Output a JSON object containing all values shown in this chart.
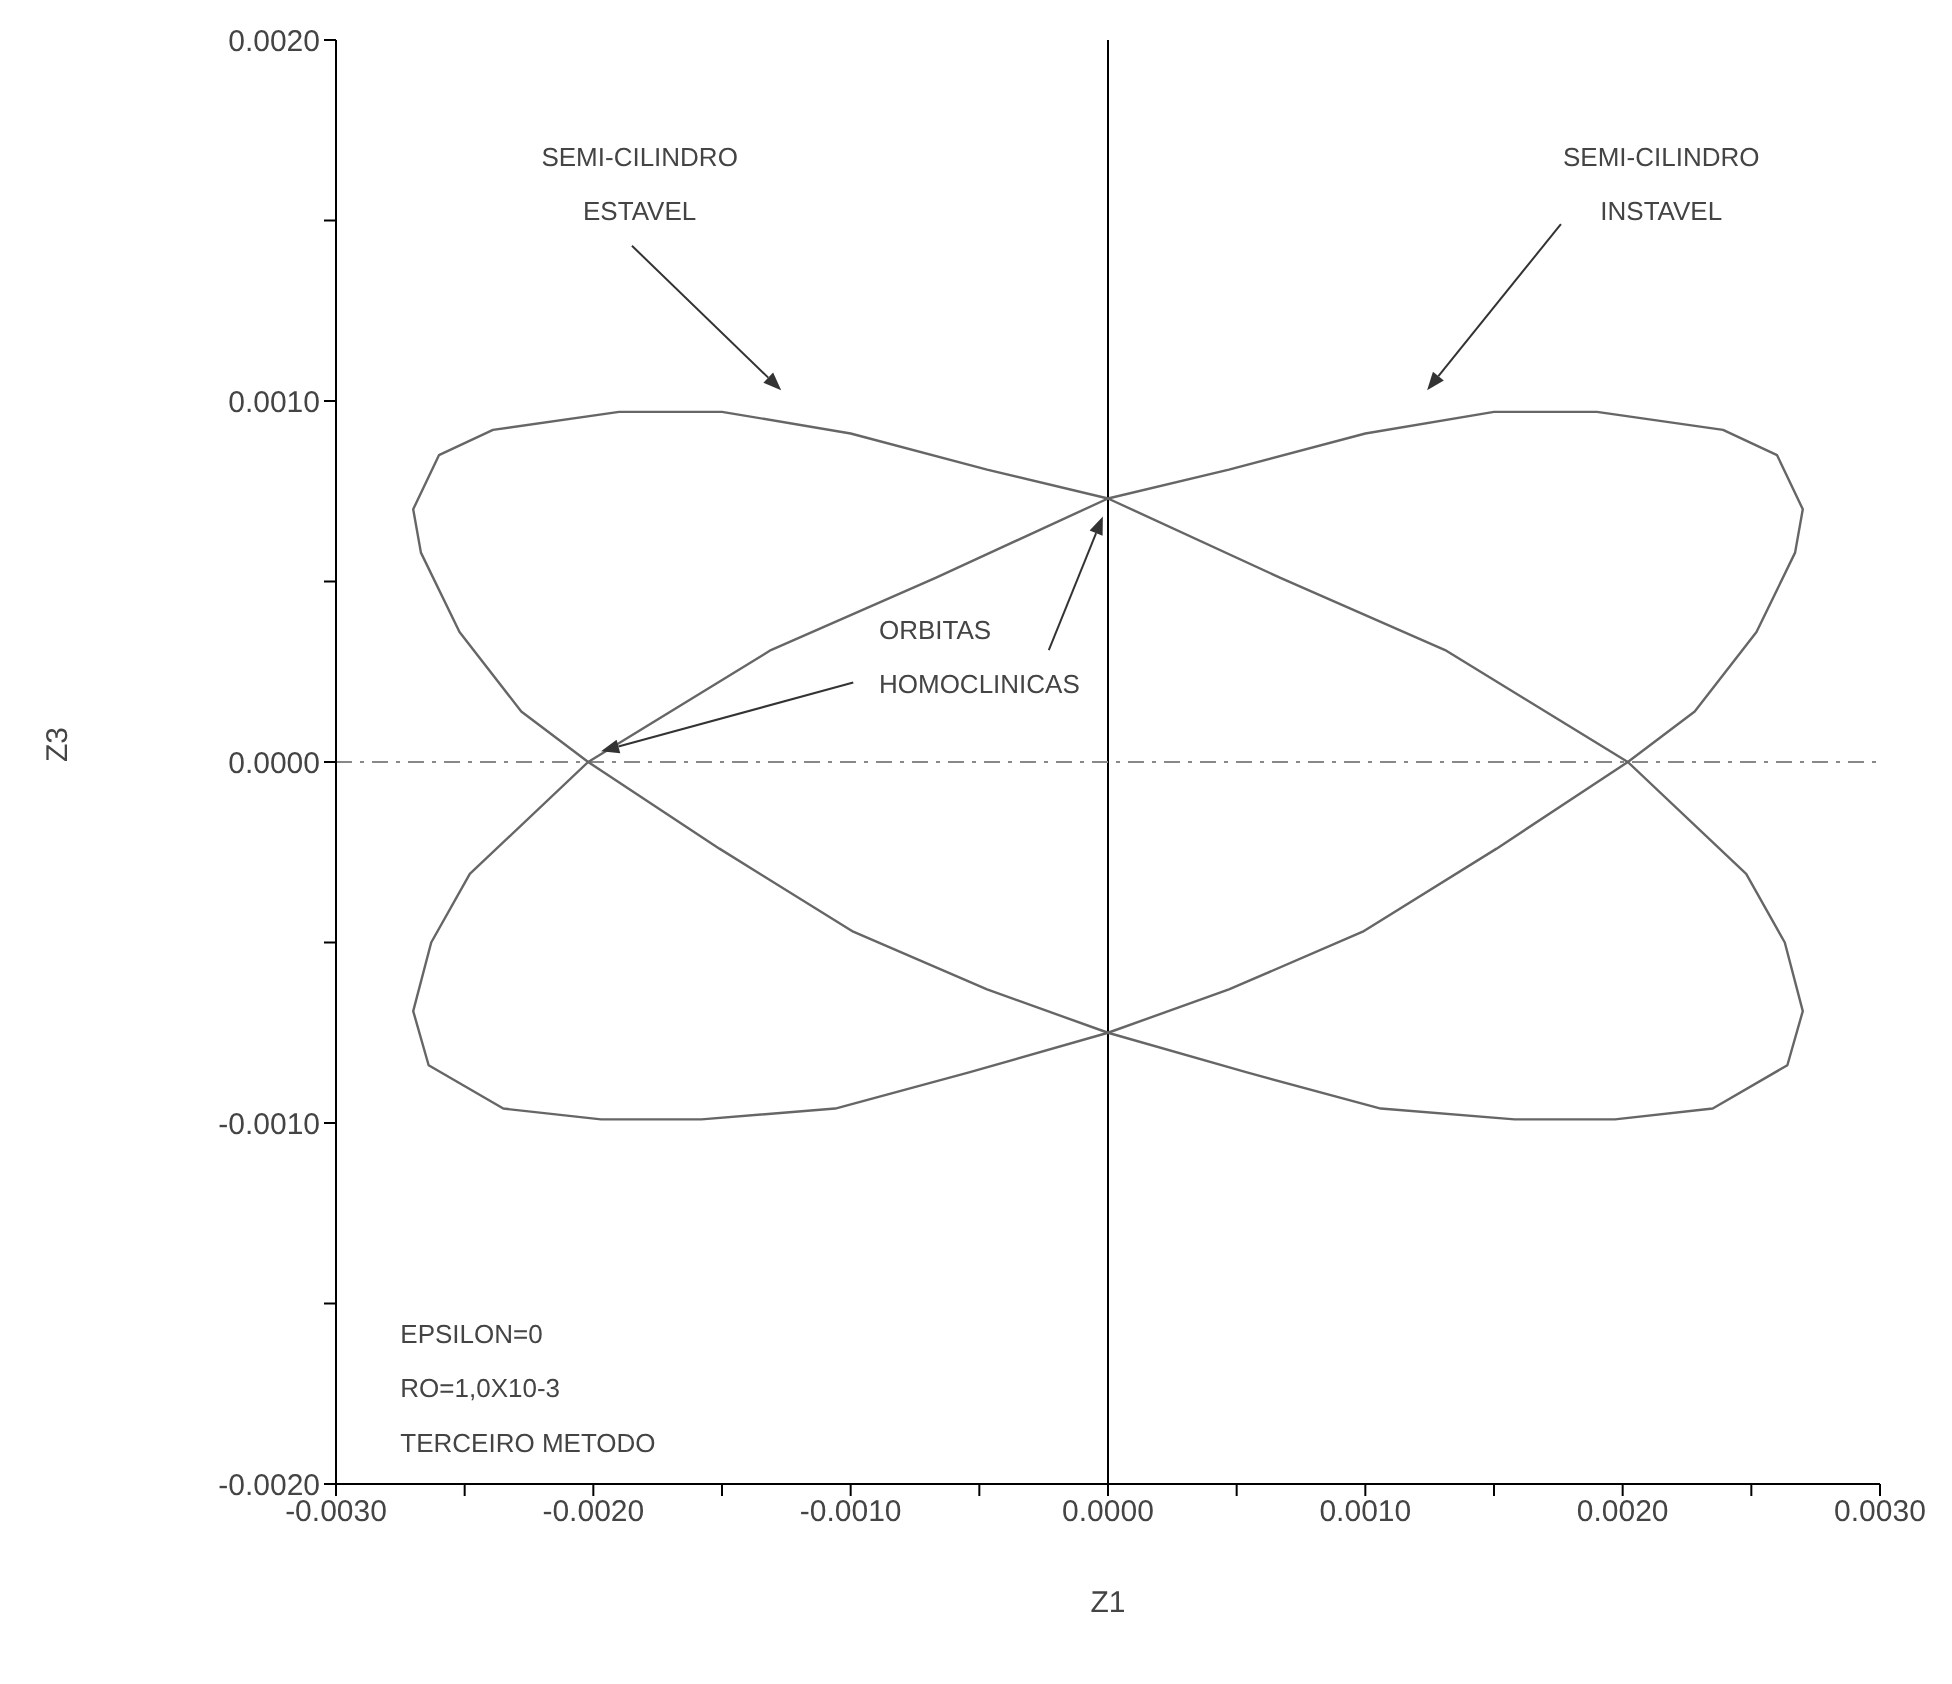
{
  "chart_data": {
    "type": "line",
    "xlabel": "Z1",
    "ylabel": "Z3",
    "xlim": [
      -0.003,
      0.003
    ],
    "ylim": [
      -0.002,
      0.002
    ],
    "xticks": [
      {
        "value": -0.003,
        "label": "-0.0030"
      },
      {
        "value": -0.0025,
        "label": null
      },
      {
        "value": -0.002,
        "label": "-0.0020"
      },
      {
        "value": -0.0015,
        "label": null
      },
      {
        "value": -0.001,
        "label": "-0.0010"
      },
      {
        "value": -0.0005,
        "label": null
      },
      {
        "value": 0,
        "label": "0.0000"
      },
      {
        "value": 0.0005,
        "label": null
      },
      {
        "value": 0.001,
        "label": "0.0010"
      },
      {
        "value": 0.0015,
        "label": null
      },
      {
        "value": 0.002,
        "label": "0.0020"
      },
      {
        "value": 0.0025,
        "label": null
      },
      {
        "value": 0.003,
        "label": "0.0030"
      }
    ],
    "yticks": [
      {
        "value": -0.002,
        "label": "-0.0020"
      },
      {
        "value": -0.0015,
        "label": null
      },
      {
        "value": -0.001,
        "label": "-0.0010"
      },
      {
        "value": -0.0005,
        "label": null
      },
      {
        "value": 0,
        "label": "0.0000"
      },
      {
        "value": 0.0005,
        "label": null
      },
      {
        "value": 0.001,
        "label": "0.0010"
      },
      {
        "value": 0.0015,
        "label": null
      },
      {
        "value": 0.002,
        "label": "0.0020"
      }
    ],
    "grid": false,
    "ref_lines": [
      {
        "axis": "x",
        "value": 0,
        "color": "#000000",
        "line_style": "solid"
      },
      {
        "axis": "y",
        "value": 0,
        "color": "#888888",
        "line_style": "dashed"
      }
    ],
    "annotations": [
      "SEMI-CILINDRO\nESTAVEL",
      "SEMI-CILINDRO\nINSTAVEL",
      "ORBITAS\nHOMOCLINICAS",
      "EPSILON=0",
      "RO=1,0X10-3",
      "TERCEIRO METODO"
    ]
  }
}
